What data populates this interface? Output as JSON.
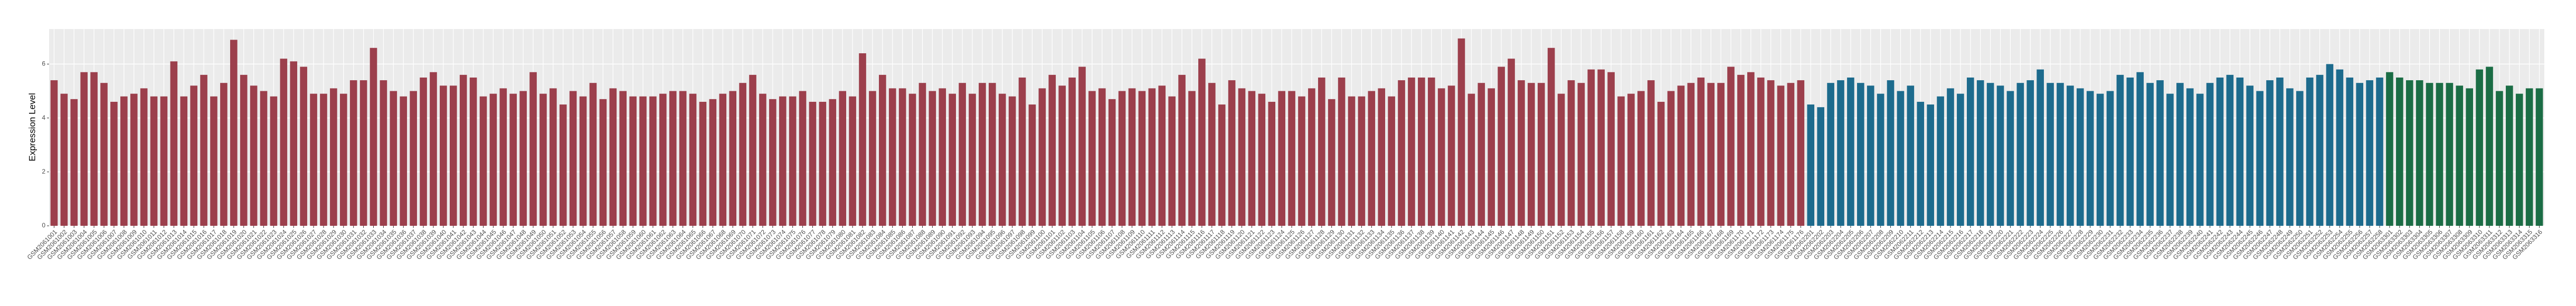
{
  "chart_data": {
    "type": "bar",
    "y_label": "Expression Level",
    "ylim": [
      0,
      7.3
    ],
    "yticks": [
      0,
      2,
      4,
      6
    ],
    "grid": true,
    "series": [
      {
        "color": "#9c3f4c",
        "categories": [
          "GSM2061001",
          "GSM2061002",
          "GSM2061003",
          "GSM2061004",
          "GSM2061005",
          "GSM2061006",
          "GSM2061007",
          "GSM2061008",
          "GSM2061009",
          "GSM2061010",
          "GSM2061011",
          "GSM2061012",
          "GSM2061013",
          "GSM2061014",
          "GSM2061015",
          "GSM2061016",
          "GSM2061017",
          "GSM2061018",
          "GSM2061019",
          "GSM2061020",
          "GSM2061021",
          "GSM2061022",
          "GSM2061023",
          "GSM2061024",
          "GSM2061025",
          "GSM2061026",
          "GSM2061027",
          "GSM2061028",
          "GSM2061029",
          "GSM2061030",
          "GSM2061031",
          "GSM2061032",
          "GSM2061033",
          "GSM2061034",
          "GSM2061035",
          "GSM2061036",
          "GSM2061037",
          "GSM2061038",
          "GSM2061039",
          "GSM2061040",
          "GSM2061041",
          "GSM2061042",
          "GSM2061043",
          "GSM2061044",
          "GSM2061045",
          "GSM2061046",
          "GSM2061047",
          "GSM2061048",
          "GSM2061049",
          "GSM2061050",
          "GSM2061051",
          "GSM2061052",
          "GSM2061053",
          "GSM2061054",
          "GSM2061055",
          "GSM2061056",
          "GSM2061057",
          "GSM2061058",
          "GSM2061059",
          "GSM2061060",
          "GSM2061061",
          "GSM2061062",
          "GSM2061063",
          "GSM2061064",
          "GSM2061065",
          "GSM2061066",
          "GSM2061067",
          "GSM2061068",
          "GSM2061069",
          "GSM2061070",
          "GSM2061071",
          "GSM2061072",
          "GSM2061073",
          "GSM2061074",
          "GSM2061075",
          "GSM2061076",
          "GSM2061077",
          "GSM2061078",
          "GSM2061079",
          "GSM2061080",
          "GSM2061081",
          "GSM2061082",
          "GSM2061083",
          "GSM2061084",
          "GSM2061085",
          "GSM2061086",
          "GSM2061087",
          "GSM2061088",
          "GSM2061089",
          "GSM2061090",
          "GSM2061091",
          "GSM2061092",
          "GSM2061093",
          "GSM2061094",
          "GSM2061095",
          "GSM2061096",
          "GSM2061097",
          "GSM2061098",
          "GSM2061099",
          "GSM2061100",
          "GSM2061101",
          "GSM2061102",
          "GSM2061103",
          "GSM2061104",
          "GSM2061105",
          "GSM2061106",
          "GSM2061107",
          "GSM2061108",
          "GSM2061109",
          "GSM2061110",
          "GSM2061111",
          "GSM2061112",
          "GSM2061113",
          "GSM2061114",
          "GSM2061115",
          "GSM2061116",
          "GSM2061117",
          "GSM2061118",
          "GSM2061119",
          "GSM2061120",
          "GSM2061121",
          "GSM2061122",
          "GSM2061123",
          "GSM2061124",
          "GSM2061125",
          "GSM2061126",
          "GSM2061127",
          "GSM2061128",
          "GSM2061129",
          "GSM2061130",
          "GSM2061131",
          "GSM2061132",
          "GSM2061133",
          "GSM2061134",
          "GSM2061135",
          "GSM2061136",
          "GSM2061137",
          "GSM2061138",
          "GSM2061139",
          "GSM2061140",
          "GSM2061141",
          "GSM2061142",
          "GSM2061143",
          "GSM2061144",
          "GSM2061145",
          "GSM2061146",
          "GSM2061147",
          "GSM2061148",
          "GSM2061149",
          "GSM2061150",
          "GSM2061151",
          "GSM2061152",
          "GSM2061153",
          "GSM2061154",
          "GSM2061155",
          "GSM2061156",
          "GSM2061157",
          "GSM2061158",
          "GSM2061159",
          "GSM2061160",
          "GSM2061161",
          "GSM2061162",
          "GSM2061163",
          "GSM2061164",
          "GSM2061165",
          "GSM2061166",
          "GSM2061167",
          "GSM2061168",
          "GSM2061169",
          "GSM2061170",
          "GSM2061171",
          "GSM2061172",
          "GSM2061173",
          "GSM2061174",
          "GSM2061175",
          "GSM2061176"
        ],
        "values": [
          5.4,
          4.9,
          4.7,
          5.7,
          5.7,
          5.3,
          4.6,
          4.8,
          4.9,
          5.1,
          4.8,
          4.8,
          6.1,
          4.8,
          5.2,
          5.6,
          4.8,
          5.3,
          6.9,
          5.6,
          5.2,
          5.0,
          4.8,
          6.2,
          6.1,
          5.9,
          4.9,
          4.9,
          5.1,
          4.9,
          5.4,
          5.4,
          6.6,
          5.4,
          5.0,
          4.8,
          5.0,
          5.5,
          5.7,
          5.2,
          5.2,
          5.6,
          5.5,
          4.8,
          4.9,
          5.1,
          4.9,
          5.0,
          5.7,
          4.9,
          5.1,
          4.5,
          5.0,
          4.8,
          5.3,
          4.7,
          5.1,
          5.0,
          4.8,
          4.8,
          4.8,
          4.9,
          5.0,
          5.0,
          4.9,
          4.6,
          4.7,
          4.9,
          5.0,
          5.3,
          5.6,
          4.9,
          4.7,
          4.8,
          4.8,
          5.0,
          4.6,
          4.6,
          4.7,
          5.0,
          4.8,
          6.4,
          5.0,
          5.6,
          5.1,
          5.1,
          4.9,
          5.3,
          5.0,
          5.1,
          4.9,
          5.3,
          4.9,
          5.3,
          5.3,
          4.9,
          4.8,
          5.5,
          4.5,
          5.1,
          5.6,
          5.2,
          5.5,
          5.9,
          5.0,
          5.1,
          4.7,
          5.0,
          5.1,
          5.0,
          5.1,
          5.2,
          4.8,
          5.6,
          5.0,
          6.2,
          5.3,
          4.5,
          5.4,
          5.1,
          5.0,
          4.9,
          4.6,
          5.0,
          5.0,
          4.8,
          5.1,
          5.5,
          4.7,
          5.5,
          4.8,
          4.8,
          5.0,
          5.1,
          4.8,
          5.4,
          5.5,
          5.5,
          5.5,
          5.1,
          5.2,
          6.95,
          4.9,
          5.3,
          5.1,
          5.9,
          6.2,
          5.4,
          5.3,
          5.3,
          6.6,
          4.9,
          5.4,
          5.3,
          5.8,
          5.8,
          5.7,
          4.8,
          4.9,
          5.0,
          5.4,
          4.6,
          5.0,
          5.2,
          5.3,
          5.5,
          5.3,
          5.3,
          5.9,
          5.6,
          5.7,
          5.5,
          5.4,
          5.2,
          5.3,
          5.4
        ]
      },
      {
        "color": "#1d6b8d",
        "categories": [
          "GSM2062201",
          "GSM2062202",
          "GSM2062203",
          "GSM2062204",
          "GSM2062205",
          "GSM2062206",
          "GSM2062207",
          "GSM2062208",
          "GSM2062209",
          "GSM2062210",
          "GSM2062211",
          "GSM2062212",
          "GSM2062213",
          "GSM2062214",
          "GSM2062215",
          "GSM2062216",
          "GSM2062217",
          "GSM2062218",
          "GSM2062219",
          "GSM2062220",
          "GSM2062221",
          "GSM2062222",
          "GSM2062223",
          "GSM2062224",
          "GSM2062225",
          "GSM2062226",
          "GSM2062227",
          "GSM2062228",
          "GSM2062229",
          "GSM2062230",
          "GSM2062231",
          "GSM2062232",
          "GSM2062233",
          "GSM2062234",
          "GSM2062235",
          "GSM2062236",
          "GSM2062237",
          "GSM2062238",
          "GSM2062239",
          "GSM2062240",
          "GSM2062241",
          "GSM2062242",
          "GSM2062243",
          "GSM2062244",
          "GSM2062245",
          "GSM2062246",
          "GSM2062247",
          "GSM2062248",
          "GSM2062249",
          "GSM2062250",
          "GSM2062251",
          "GSM2062252",
          "GSM2062253",
          "GSM2062254",
          "GSM2062255",
          "GSM2062256",
          "GSM2062257",
          "GSM2062258"
        ],
        "values": [
          4.5,
          4.4,
          5.3,
          5.4,
          5.5,
          5.3,
          5.2,
          4.9,
          5.4,
          5.0,
          5.2,
          4.6,
          4.5,
          4.8,
          5.1,
          4.9,
          5.5,
          5.4,
          5.3,
          5.2,
          5.0,
          5.3,
          5.4,
          5.8,
          5.3,
          5.3,
          5.2,
          5.1,
          5.0,
          4.9,
          5.0,
          5.6,
          5.5,
          5.7,
          5.3,
          5.4,
          4.9,
          5.3,
          5.1,
          4.9,
          5.3,
          5.5,
          5.6,
          5.5,
          5.2,
          5.0,
          5.4,
          5.5,
          5.1,
          5.0,
          5.5,
          5.6,
          6.0,
          5.8,
          5.5,
          5.3,
          5.4,
          5.5
        ]
      },
      {
        "color": "#1b6d45",
        "categories": [
          "GSM2063301",
          "GSM2063302",
          "GSM2063303",
          "GSM2063304",
          "GSM2063305",
          "GSM2063306",
          "GSM2063307",
          "GSM2063308",
          "GSM2063309",
          "GSM2063310",
          "GSM2063311",
          "GSM2063312",
          "GSM2063313",
          "GSM2063314",
          "GSM2063315",
          "GSM2063316"
        ],
        "values": [
          5.7,
          5.5,
          5.4,
          5.4,
          5.3,
          5.3,
          5.3,
          5.2,
          5.1,
          5.8,
          5.9,
          5.0,
          5.2,
          4.9,
          5.1,
          5.1
        ]
      }
    ]
  }
}
